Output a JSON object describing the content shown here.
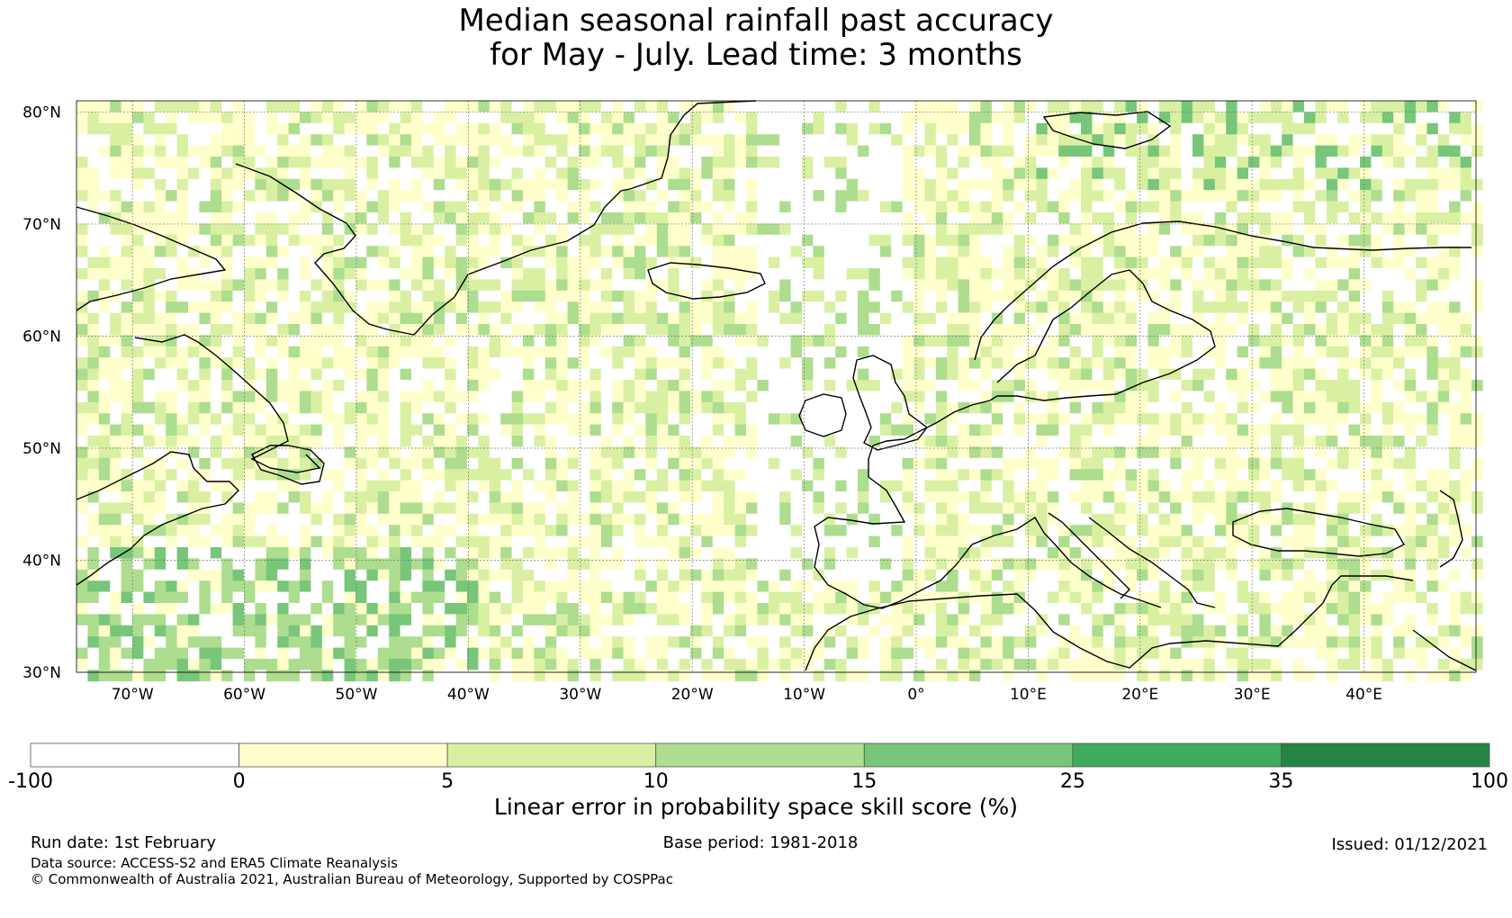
{
  "title_line1": "Median seasonal rainfall past accuracy",
  "title_line2": "for May - July. Lead time: 3 months",
  "map": {
    "lat_labels": [
      "80°N",
      "70°N",
      "60°N",
      "50°N",
      "40°N",
      "30°N"
    ],
    "lon_labels": [
      "70°W",
      "60°W",
      "50°W",
      "40°W",
      "30°W",
      "20°W",
      "10°W",
      "0°",
      "10°E",
      "20°E",
      "30°E",
      "40°E"
    ],
    "lat_range": [
      30,
      81
    ],
    "lon_range": [
      -75,
      50
    ],
    "map_shows": "Linear error in probability space skill score over the North Atlantic and Europe; mostly 0-10%, higher (15-35%) near Florida/Gulf of Mexico, Greenland Sea and Svalbard"
  },
  "colorbar": {
    "title": "Linear error in probability space skill score (%)",
    "ticks": [
      "-100",
      "0",
      "5",
      "10",
      "15",
      "25",
      "35",
      "100"
    ],
    "colors": [
      "#ffffff",
      "#ffffcc",
      "#d9f0a3",
      "#addd8e",
      "#78c679",
      "#41ab5d",
      "#238443"
    ]
  },
  "footer": {
    "run_date": "Run date: 1st February",
    "base_period": "Base period: 1981-2018",
    "issued": "Issued: 01/12/2021",
    "data_source": "Data source: ACCESS-S2 and ERA5 Climate Reanalysis",
    "copyright": "© Commonwealth of Australia 2021, Australian Bureau of Meteorology, Supported by COSPPac"
  }
}
